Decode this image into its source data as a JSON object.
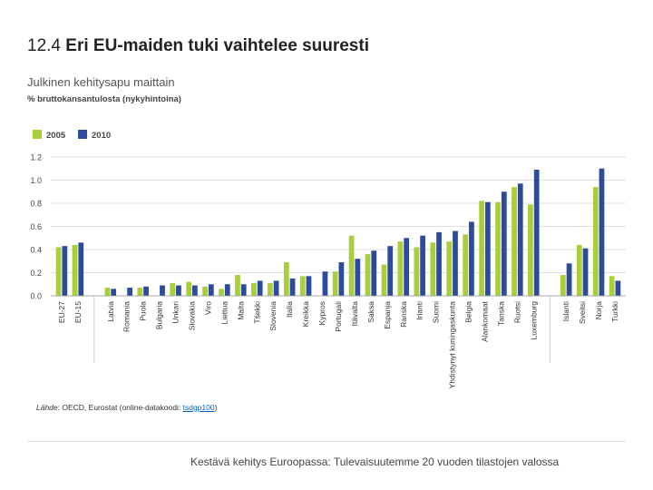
{
  "slide": {
    "number": "12.4",
    "title": "Eri EU-maiden tuki vaihtelee suuresti"
  },
  "chart_data": {
    "type": "bar",
    "title": "Julkinen kehitysapu maittain",
    "ylabel": "% bruttokansantulosta (nykyhintoina)",
    "ylim": [
      0,
      1.2
    ],
    "yticks": [
      "0.0",
      "0.2",
      "0.4",
      "0.6",
      "0.8",
      "1.0",
      "1.2"
    ],
    "grid": true,
    "legend_position": "top-left",
    "categories": [
      "EU-27",
      "EU-15",
      "Latvia",
      "Romania",
      "Puola",
      "Bulgaria",
      "Unkari",
      "Slovakia",
      "Viro",
      "Liettua",
      "Malta",
      "Tšekki",
      "Slovenia",
      "Italia",
      "Kreikka",
      "Kypros",
      "Portugali",
      "Itävalta",
      "Saksa",
      "Espanja",
      "Ranska",
      "Irlanti",
      "Suomi",
      "Yhdistynyt kuningaskunta",
      "Belgia",
      "Alankomaat",
      "Tanska",
      "Ruotsi",
      "Luxemburg",
      "Islanti",
      "Sveitsi",
      "Norja",
      "Turkki"
    ],
    "groups": [
      2,
      27,
      4
    ],
    "series": [
      {
        "name": "2005",
        "color": "#a8cf3a",
        "values": [
          0.42,
          0.44,
          0.07,
          null,
          0.07,
          null,
          0.11,
          0.12,
          0.08,
          0.06,
          0.18,
          0.11,
          0.11,
          0.29,
          0.17,
          null,
          0.21,
          0.52,
          0.36,
          0.27,
          0.47,
          0.42,
          0.46,
          0.47,
          0.53,
          0.82,
          0.81,
          0.94,
          0.79,
          0.18,
          0.44,
          0.94,
          0.17
        ]
      },
      {
        "name": "2010",
        "color": "#2e4a9c",
        "values": [
          0.43,
          0.46,
          0.06,
          0.07,
          0.08,
          0.09,
          0.09,
          0.09,
          0.1,
          0.1,
          0.1,
          0.13,
          0.13,
          0.15,
          0.17,
          0.21,
          0.29,
          0.32,
          0.39,
          0.43,
          0.5,
          0.52,
          0.55,
          0.56,
          0.64,
          0.81,
          0.9,
          0.97,
          1.09,
          0.28,
          0.41,
          1.1,
          0.13
        ]
      }
    ]
  },
  "source": {
    "prefix_italic": "Lähde",
    "text": ": OECD, Eurostat (online-datakoodi: ",
    "link": "tsdgp100",
    "suffix": ")"
  },
  "footer": "Kestävä kehitys Euroopassa: Tulevaisuutemme 20 vuoden tilastojen valossa"
}
